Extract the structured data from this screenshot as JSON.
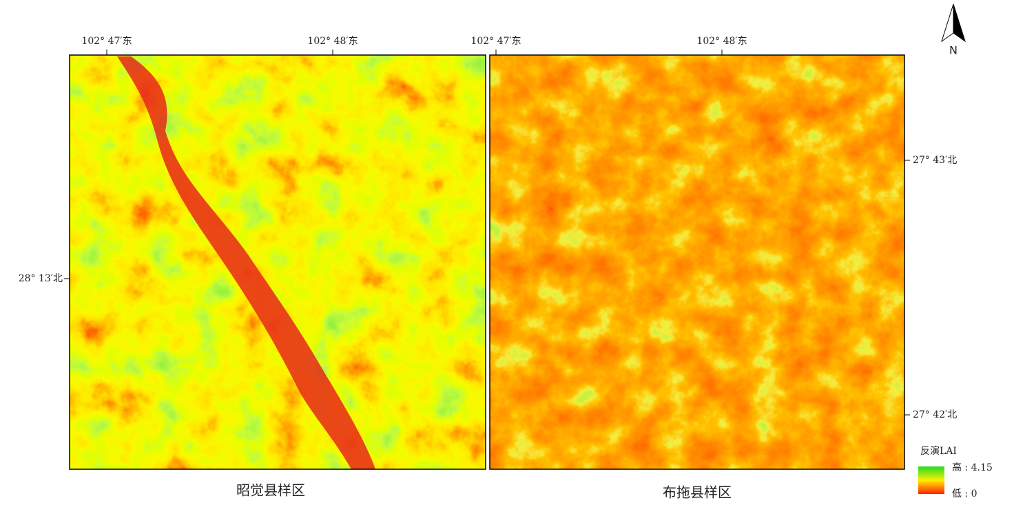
{
  "map": {
    "left_panel": {
      "title": "昭觉县样区",
      "top_labels": [
        "102° 47′东",
        "102° 48′东"
      ],
      "left_labels": [
        "28° 13′北"
      ]
    },
    "right_panel": {
      "title": "布拖县样区",
      "top_labels": [
        "102° 47′东",
        "102° 48′东"
      ],
      "right_labels": [
        "27° 43′北",
        "27° 42′北"
      ]
    },
    "north": "N",
    "legend": {
      "title": "反演LAI",
      "high": "高 : 4.15",
      "low": "低 : 0"
    }
  }
}
